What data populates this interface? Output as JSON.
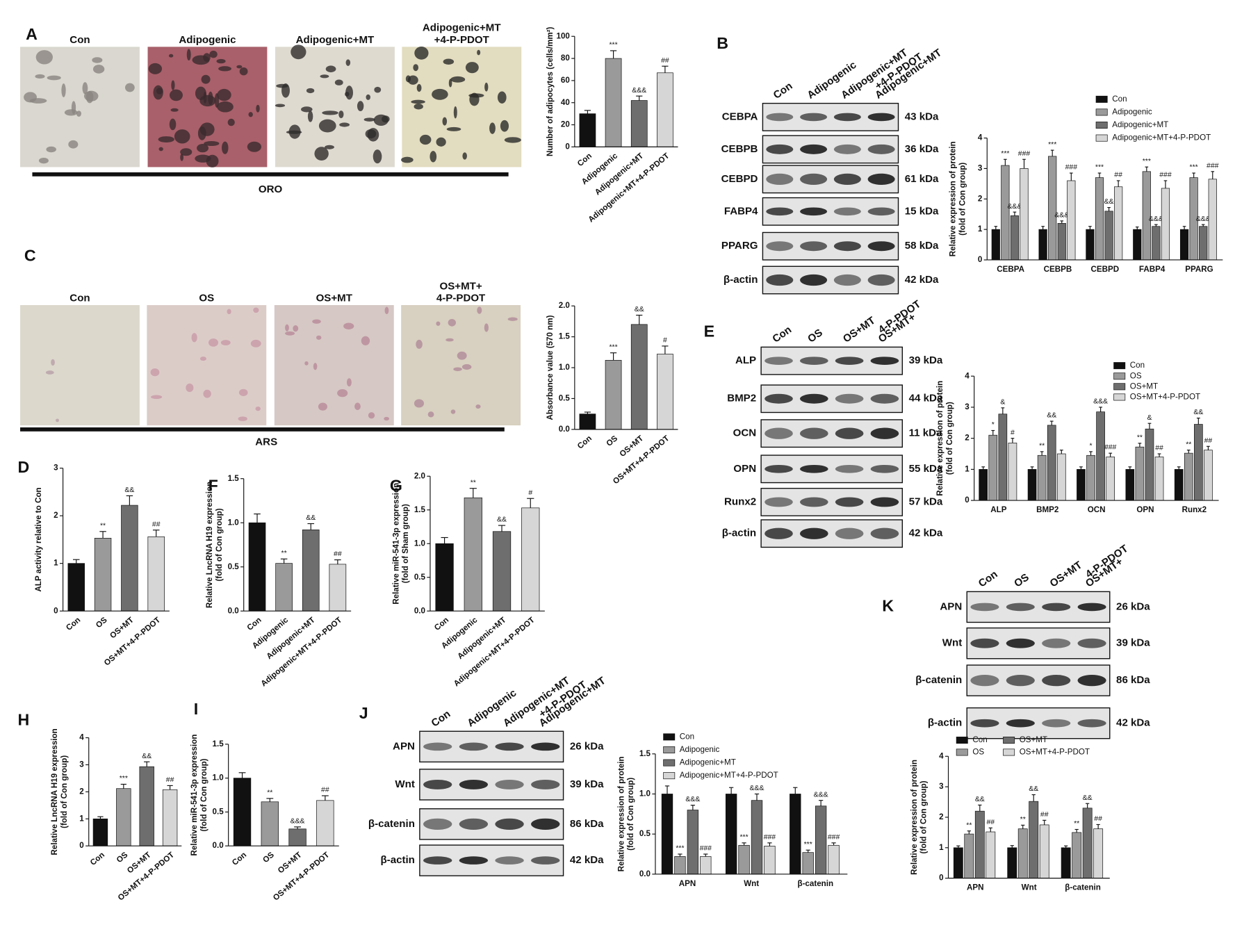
{
  "chart_data": [
    {
      "type": "bar",
      "ylabel": [
        "Number of adipocytes (cells/mm²)"
      ],
      "categories": [
        "Con",
        "Adipogenic",
        "Adipogenic+MT",
        "Adipogenic+MT+4-P-PDOT"
      ],
      "values": [
        30,
        80,
        42,
        67
      ],
      "errors": [
        3,
        7,
        4,
        6
      ],
      "colors": [
        "#111111",
        "#9a9a9a",
        "#6e6e6e",
        "#d6d6d6"
      ],
      "annotations": [
        null,
        "***",
        "&&&",
        "##"
      ],
      "ylim": [
        0,
        100
      ],
      "yticks": [
        0,
        20,
        40,
        60,
        80,
        100
      ]
    },
    {
      "type": "bar",
      "ylabel": [
        "Relative expression of protein",
        "(fold of Con group)"
      ],
      "categories": [
        "CEBPA",
        "CEBPB",
        "CEBPD",
        "FABP4",
        "PPARG"
      ],
      "legend": "top",
      "ylim": [
        0,
        4
      ],
      "yticks": [
        0,
        1,
        2,
        3,
        4
      ],
      "series": [
        {
          "name": "Con",
          "color": "#111111",
          "values": [
            1,
            1,
            1,
            1,
            1
          ],
          "errors": [
            0.1,
            0.1,
            0.1,
            0.08,
            0.1
          ]
        },
        {
          "name": "Adipogenic",
          "color": "#9a9a9a",
          "values": [
            3.1,
            3.4,
            2.7,
            2.9,
            2.7
          ],
          "errors": [
            0.2,
            0.2,
            0.15,
            0.15,
            0.15
          ],
          "annotations": [
            "***",
            "***",
            "***",
            "***",
            "***"
          ]
        },
        {
          "name": "Adipogenic+MT",
          "color": "#6e6e6e",
          "values": [
            1.45,
            1.2,
            1.6,
            1.1,
            1.1
          ],
          "errors": [
            0.12,
            0.08,
            0.12,
            0.06,
            0.06
          ],
          "annotations": [
            "&&&",
            "&&&",
            "&&",
            "&&&",
            "&&&"
          ]
        },
        {
          "name": "Adipogenic+MT+4-P-PDOT",
          "color": "#d6d6d6",
          "values": [
            3.0,
            2.6,
            2.4,
            2.35,
            2.65
          ],
          "errors": [
            0.3,
            0.25,
            0.2,
            0.25,
            0.25
          ],
          "annotations": [
            "###",
            "###",
            "##",
            "###",
            "###"
          ]
        }
      ]
    },
    {
      "type": "bar",
      "ylabel": [
        "Absorbance value (570 nm)"
      ],
      "categories": [
        "Con",
        "OS",
        "OS+MT",
        "OS+MT+4-P-PDOT"
      ],
      "values": [
        0.25,
        1.12,
        1.7,
        1.22
      ],
      "errors": [
        0.03,
        0.12,
        0.15,
        0.13
      ],
      "colors": [
        "#111111",
        "#9a9a9a",
        "#6e6e6e",
        "#d6d6d6"
      ],
      "annotations": [
        null,
        "***",
        "&&",
        "#"
      ],
      "ylim": [
        0,
        2
      ],
      "yticks": [
        {
          "value": 0,
          "label": "0.0"
        },
        0.5,
        {
          "value": 1,
          "label": "1.0"
        },
        1.5,
        {
          "value": 2,
          "label": "2.0"
        }
      ]
    },
    {
      "type": "bar",
      "ylabel": [
        "ALP activity relative to Con"
      ],
      "categories": [
        "Con",
        "OS",
        "OS+MT",
        "OS+MT+4-P-PDOT"
      ],
      "values": [
        1.0,
        1.53,
        2.22,
        1.56
      ],
      "errors": [
        0.08,
        0.14,
        0.2,
        0.14
      ],
      "colors": [
        "#111111",
        "#9a9a9a",
        "#6e6e6e",
        "#d6d6d6"
      ],
      "annotations": [
        null,
        "**",
        "&&",
        "##"
      ],
      "ylim": [
        0,
        3
      ],
      "yticks": [
        0,
        1,
        2,
        3
      ]
    },
    {
      "type": "bar",
      "ylabel": [
        "Relative expression of protein",
        "(fold of Con group)"
      ],
      "categories": [
        "ALP",
        "BMP2",
        "OCN",
        "OPN",
        "Runx2"
      ],
      "legend": "top",
      "ylim": [
        0,
        4
      ],
      "yticks": [
        0,
        1,
        2,
        3,
        4
      ],
      "series": [
        {
          "name": "Con",
          "color": "#111111",
          "values": [
            1,
            1,
            1,
            1,
            1
          ],
          "errors": [
            0.08,
            0.08,
            0.08,
            0.08,
            0.08
          ]
        },
        {
          "name": "OS",
          "color": "#9a9a9a",
          "values": [
            2.1,
            1.45,
            1.45,
            1.72,
            1.52
          ],
          "errors": [
            0.15,
            0.12,
            0.12,
            0.12,
            0.1
          ],
          "annotations": [
            "*",
            "**",
            "*",
            "**",
            "**"
          ]
        },
        {
          "name": "OS+MT",
          "color": "#6e6e6e",
          "values": [
            2.78,
            2.42,
            2.85,
            2.3,
            2.45
          ],
          "errors": [
            0.2,
            0.13,
            0.15,
            0.18,
            0.2
          ],
          "annotations": [
            "&",
            "&&",
            "&&&",
            "&",
            "&&"
          ]
        },
        {
          "name": "OS+MT+4-P-PDOT",
          "color": "#d6d6d6",
          "values": [
            1.85,
            1.5,
            1.4,
            1.4,
            1.62
          ],
          "errors": [
            0.15,
            0.12,
            0.12,
            0.1,
            0.12
          ],
          "annotations": [
            "#",
            null,
            "###",
            "##",
            "##"
          ]
        }
      ]
    },
    {
      "type": "bar",
      "ylabel": [
        "Relative LncRNA H19 expression",
        "(fold of Con group)"
      ],
      "categories": [
        "Con",
        "Adipogenic",
        "Adipogenic+MT",
        "Adipogenic+MT+4-P-PDOT"
      ],
      "values": [
        1.0,
        0.54,
        0.92,
        0.53
      ],
      "errors": [
        0.1,
        0.05,
        0.07,
        0.05
      ],
      "colors": [
        "#111111",
        "#9a9a9a",
        "#6e6e6e",
        "#d6d6d6"
      ],
      "annotations": [
        null,
        "**",
        "&&",
        "##"
      ],
      "ylim": [
        0,
        1.5
      ],
      "yticks": [
        {
          "value": 0,
          "label": "0.0"
        },
        0.5,
        {
          "value": 1,
          "label": "1.0"
        },
        1.5
      ]
    },
    {
      "type": "bar",
      "ylabel": [
        "Relative miR-541-3p expression",
        "(fold of Sham group)"
      ],
      "categories": [
        "Con",
        "Adipogenic",
        "Adipogenic+MT",
        "Adipogenic+MT+4-P-PDOT"
      ],
      "values": [
        1.0,
        1.68,
        1.18,
        1.53
      ],
      "errors": [
        0.09,
        0.14,
        0.09,
        0.14
      ],
      "colors": [
        "#111111",
        "#9a9a9a",
        "#6e6e6e",
        "#d6d6d6"
      ],
      "annotations": [
        null,
        "**",
        "&&",
        "#"
      ],
      "ylim": [
        0,
        2
      ],
      "yticks": [
        {
          "value": 0,
          "label": "0.0"
        },
        0.5,
        {
          "value": 1,
          "label": "1.0"
        },
        1.5,
        {
          "value": 2,
          "label": "2.0"
        }
      ]
    },
    {
      "type": "bar",
      "ylabel": [
        "Relative LncRNA H19 expression",
        "(fold of Con group)"
      ],
      "categories": [
        "Con",
        "OS",
        "OS+MT",
        "OS+MT+4-P-PDOT"
      ],
      "values": [
        1.0,
        2.12,
        2.93,
        2.08
      ],
      "errors": [
        0.08,
        0.16,
        0.18,
        0.15
      ],
      "colors": [
        "#111111",
        "#9a9a9a",
        "#6e6e6e",
        "#d6d6d6"
      ],
      "annotations": [
        null,
        "***",
        "&&",
        "##"
      ],
      "ylim": [
        0,
        4
      ],
      "yticks": [
        0,
        1,
        2,
        3,
        4
      ]
    },
    {
      "type": "bar",
      "ylabel": [
        "Relative miR-541-3p expression",
        "(fold of Con group)"
      ],
      "categories": [
        "Con",
        "OS",
        "OS+MT",
        "OS+MT+4-P-PDOT"
      ],
      "values": [
        1.0,
        0.65,
        0.25,
        0.67
      ],
      "errors": [
        0.08,
        0.05,
        0.03,
        0.07
      ],
      "colors": [
        "#111111",
        "#9a9a9a",
        "#6e6e6e",
        "#d6d6d6"
      ],
      "annotations": [
        null,
        "**",
        "&&&",
        "##"
      ],
      "ylim": [
        0,
        1.5
      ],
      "yticks": [
        {
          "value": 0,
          "label": "0.0"
        },
        0.5,
        {
          "value": 1,
          "label": "1.0"
        },
        1.5
      ]
    },
    {
      "type": "bar",
      "ylabel": [
        "Relative expression of protein",
        "(fold of Con group)"
      ],
      "categories": [
        "APN",
        "Wnt",
        "β-catenin"
      ],
      "legend": "top",
      "ylim": [
        0,
        1.5
      ],
      "yticks": [
        {
          "value": 0,
          "label": "0.0"
        },
        0.5,
        {
          "value": 1,
          "label": "1.0"
        },
        1.5
      ],
      "series": [
        {
          "name": "Con",
          "color": "#111111",
          "values": [
            1,
            1,
            1
          ],
          "errors": [
            0.1,
            0.08,
            0.08
          ]
        },
        {
          "name": "Adipogenic",
          "color": "#9a9a9a",
          "values": [
            0.22,
            0.36,
            0.27
          ],
          "errors": [
            0.03,
            0.03,
            0.03
          ],
          "annotations": [
            "***",
            "***",
            "***"
          ]
        },
        {
          "name": "Adipogenic+MT",
          "color": "#6e6e6e",
          "values": [
            0.8,
            0.92,
            0.85
          ],
          "errors": [
            0.06,
            0.08,
            0.07
          ],
          "annotations": [
            "&&&",
            "&&&",
            "&&&"
          ]
        },
        {
          "name": "Adipogenic+MT+4-P-PDOT",
          "color": "#d6d6d6",
          "values": [
            0.22,
            0.35,
            0.36
          ],
          "errors": [
            0.03,
            0.04,
            0.03
          ],
          "annotations": [
            "###",
            "###",
            "###"
          ]
        }
      ]
    },
    {
      "type": "bar",
      "ylabel": [
        "Relative expression of protein",
        "(fold of Con group)"
      ],
      "categories": [
        "APN",
        "Wnt",
        "β-catenin"
      ],
      "legend": "top",
      "ylim": [
        0,
        4
      ],
      "yticks": [
        0,
        1,
        2,
        3,
        4
      ],
      "series": [
        {
          "name": "Con",
          "color": "#111111",
          "values": [
            1,
            1,
            1
          ],
          "errors": [
            0.06,
            0.07,
            0.06
          ]
        },
        {
          "name": "OS",
          "color": "#9a9a9a",
          "values": [
            1.45,
            1.62,
            1.5
          ],
          "errors": [
            0.1,
            0.12,
            0.1
          ],
          "annotations": [
            "**",
            "**",
            "**"
          ]
        },
        {
          "name": "OS+MT",
          "color": "#6e6e6e",
          "values": [
            2.2,
            2.52,
            2.3
          ],
          "errors": [
            0.2,
            0.22,
            0.15
          ],
          "annotations": [
            "&&",
            "&&",
            "&&"
          ]
        },
        {
          "name": "OS+MT+4-P-PDOT",
          "color": "#d6d6d6",
          "values": [
            1.52,
            1.75,
            1.62
          ],
          "errors": [
            0.13,
            0.15,
            0.14
          ],
          "annotations": [
            "##",
            "##",
            "##"
          ]
        }
      ]
    }
  ],
  "panels": {
    "letters": [
      "A",
      "B",
      "C",
      "D",
      "E",
      "F",
      "G",
      "H",
      "I",
      "J",
      "K"
    ],
    "staining": [
      {
        "captions": [
          [
            "Con"
          ],
          [
            "Adipogenic"
          ],
          [
            "Adipogenic+MT"
          ],
          [
            "Adipogenic+MT",
            "+4-P-PDOT"
          ]
        ],
        "label": "ORO"
      },
      {
        "captions": [
          [
            "Con"
          ],
          [
            "OS"
          ],
          [
            "OS+MT"
          ],
          [
            "OS+MT+",
            "4-P-PDOT"
          ]
        ],
        "label": "ARS"
      }
    ],
    "blots": [
      {
        "lanes": [
          [
            "Con"
          ],
          [
            "Adipogenic"
          ],
          [
            "Adipogenic+MT"
          ],
          [
            "Adipogenic+MT",
            "+4-P-PDOT"
          ]
        ],
        "proteins": [
          "CEBPA",
          "CEBPB",
          "CEBPD",
          "FABP4",
          "PPARG",
          "β-actin"
        ],
        "kda": [
          "43 kDa",
          "36 kDa",
          "61 kDa",
          "15 kDa",
          "58 kDa",
          "42 kDa"
        ]
      },
      {
        "lanes": [
          [
            "Con"
          ],
          [
            "OS"
          ],
          [
            "OS+MT"
          ],
          [
            "OS+MT+",
            "4-P-PDOT"
          ]
        ],
        "proteins": [
          "ALP",
          "BMP2",
          "OCN",
          "OPN",
          "Runx2",
          "β-actin"
        ],
        "kda": [
          "39 kDa",
          "44 kDa",
          "11 kDa",
          "55 kDa",
          "57 kDa",
          "42 kDa"
        ]
      },
      {
        "lanes": [
          [
            "Con"
          ],
          [
            "Adipogenic"
          ],
          [
            "Adipogenic+MT"
          ],
          [
            "Adipogenic+MT",
            "+4-P-PDOT"
          ]
        ],
        "proteins": [
          "APN",
          "Wnt",
          "β-catenin",
          "β-actin"
        ],
        "kda": [
          "26 kDa",
          "39 kDa",
          "86 kDa",
          "42 kDa"
        ]
      },
      {
        "lanes": [
          [
            "Con"
          ],
          [
            "OS"
          ],
          [
            "OS+MT"
          ],
          [
            "OS+MT+",
            "4-P-PDOT"
          ]
        ],
        "proteins": [
          "APN",
          "Wnt",
          "β-catenin",
          "β-actin"
        ],
        "kda": [
          "26 kDa",
          "39 kDa",
          "86 kDa",
          "42 kDa"
        ]
      }
    ]
  }
}
